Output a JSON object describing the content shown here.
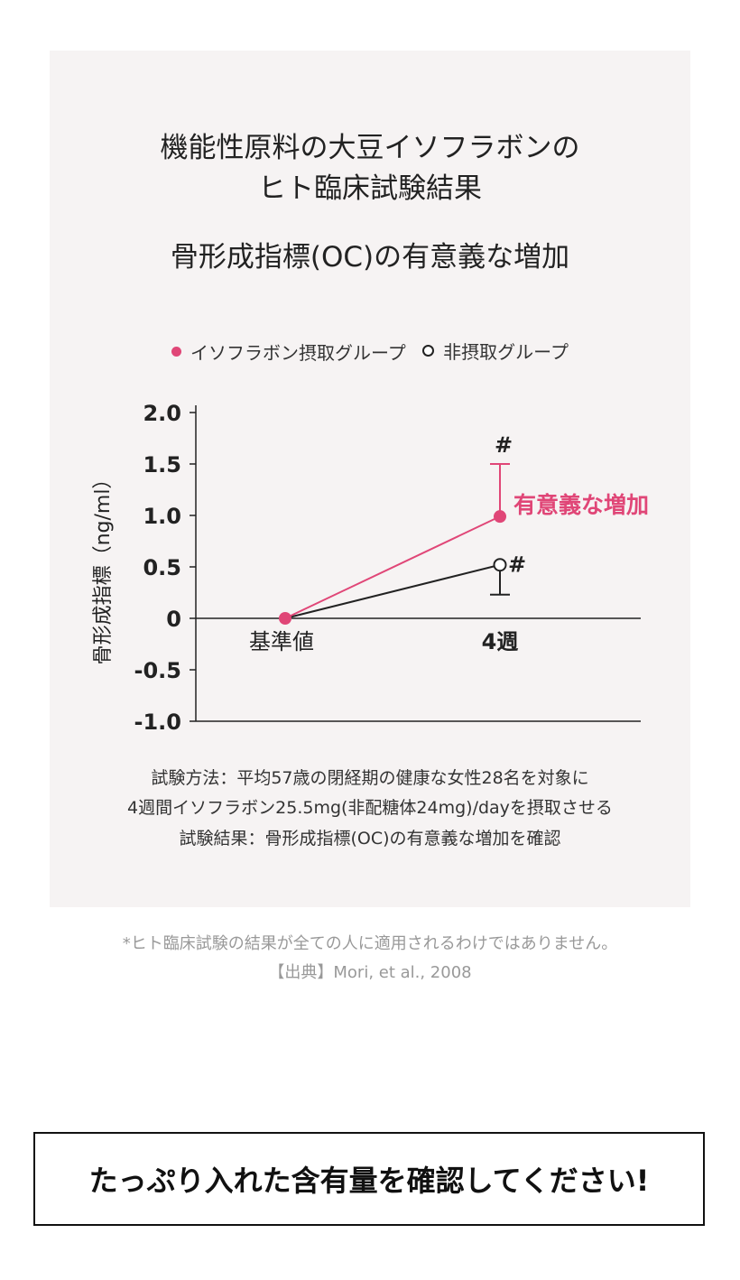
{
  "header": {
    "title_line1": "機能性原料の大豆イソフラボンの",
    "title_line2": "ヒト臨床試験結果",
    "subtitle": "骨形成指標(OC)の有意義な増加"
  },
  "colors": {
    "accent": "#e04677",
    "control": "#222222",
    "panel": "#f6f3f3"
  },
  "chart_data": {
    "type": "line",
    "categories": [
      "基準値",
      "4週"
    ],
    "ylabel": "骨形成指標（ng/ml）",
    "ylim": [
      -1.0,
      2.0
    ],
    "yticks": [
      2.0,
      1.5,
      1.0,
      0.5,
      0,
      -0.5,
      -1.0
    ],
    "ytick_labels": [
      "2.0",
      "1.5",
      "1.0",
      "0.5",
      "0",
      "-0.5",
      "-1.0"
    ],
    "series": [
      {
        "name": "イソフラボン摂取グループ",
        "values": [
          0,
          0.99
        ],
        "error_upper": [
          null,
          1.5
        ],
        "significance": [
          null,
          "#"
        ],
        "color": "#e04677",
        "marker": "filled"
      },
      {
        "name": "非摂取グループ",
        "values": [
          0,
          0.52
        ],
        "error_lower": [
          null,
          0.23
        ],
        "significance": [
          null,
          "#"
        ],
        "color": "#222222",
        "marker": "hollow"
      }
    ],
    "annotation": "有意義な増加"
  },
  "method": {
    "line1": "試験方法：平均57歳の閉経期の健康な女性28名を対象に",
    "line2": "4週間イソフラボン25.5mg(非配糖体24mg)/dayを摂取させる",
    "line3": "試験結果：骨形成指標(OC)の有意義な増加を確認"
  },
  "note": {
    "disclaimer": "*ヒト臨床試験の結果が全ての人に適用されるわけではありません。",
    "source": "【出典】Mori, et al., 2008"
  },
  "cta": {
    "label": "たっぷり入れた含有量を確認してください!"
  }
}
